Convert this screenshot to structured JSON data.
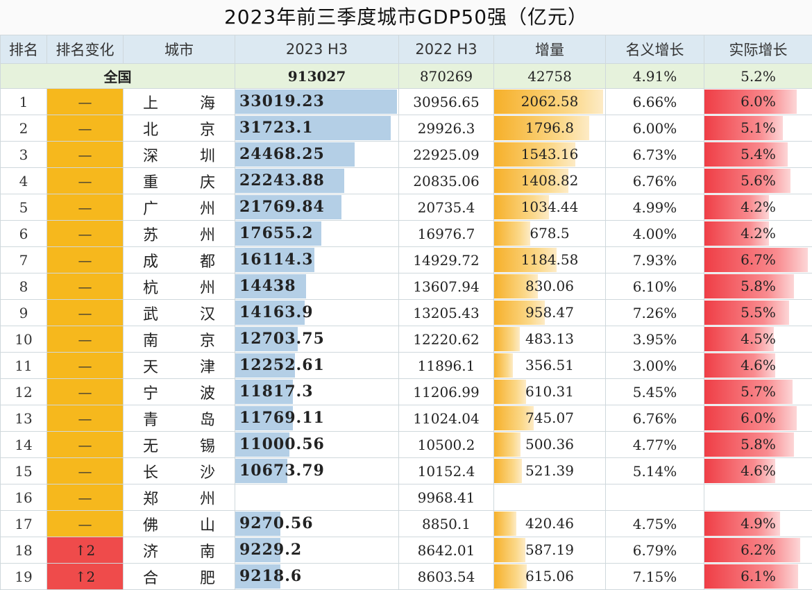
{
  "title": "2023年前三季度城市GDP50强（亿元）",
  "headers": [
    "排名",
    "排名变化",
    "城市",
    "2023 H3",
    "2022 H3",
    "增量",
    "名义增长",
    "实际增长"
  ],
  "total": {
    "label": "全国",
    "h23": "913027",
    "h22": "870269",
    "inc": "42758",
    "nominal": "4.91%",
    "real": "5.2%"
  },
  "scale": {
    "h23_max": 33019.23,
    "inc_max": 2062.58,
    "real_max": 6.7
  },
  "colors": {
    "unchanged": "#f6b81d",
    "rank_up": "#ef4b4b",
    "bar_2023": "#b4cfe6",
    "bar_inc": "#f6b02a",
    "bar_real": "#ef3e46",
    "total_row": "#e6f2dc",
    "header_row": "#dce9f2"
  },
  "rows": [
    {
      "rank": "1",
      "change": "—",
      "up": false,
      "city": "上海",
      "h23": "33019.23",
      "h22": "30956.65",
      "inc": "2062.58",
      "nominal": "6.66%",
      "real": "6.0%"
    },
    {
      "rank": "2",
      "change": "—",
      "up": false,
      "city": "北京",
      "h23": "31723.1",
      "h22": "29926.3",
      "inc": "1796.8",
      "nominal": "6.00%",
      "real": "5.1%"
    },
    {
      "rank": "3",
      "change": "—",
      "up": false,
      "city": "深圳",
      "h23": "24468.25",
      "h22": "22925.09",
      "inc": "1543.16",
      "nominal": "6.73%",
      "real": "5.4%"
    },
    {
      "rank": "4",
      "change": "—",
      "up": false,
      "city": "重庆",
      "h23": "22243.88",
      "h22": "20835.06",
      "inc": "1408.82",
      "nominal": "6.76%",
      "real": "5.6%"
    },
    {
      "rank": "5",
      "change": "—",
      "up": false,
      "city": "广州",
      "h23": "21769.84",
      "h22": "20735.4",
      "inc": "1034.44",
      "nominal": "4.99%",
      "real": "4.2%"
    },
    {
      "rank": "6",
      "change": "—",
      "up": false,
      "city": "苏州",
      "h23": "17655.2",
      "h22": "16976.7",
      "inc": "678.5",
      "nominal": "4.00%",
      "real": "4.2%"
    },
    {
      "rank": "7",
      "change": "—",
      "up": false,
      "city": "成都",
      "h23": "16114.3",
      "h22": "14929.72",
      "inc": "1184.58",
      "nominal": "7.93%",
      "real": "6.7%"
    },
    {
      "rank": "8",
      "change": "—",
      "up": false,
      "city": "杭州",
      "h23": "14438",
      "h22": "13607.94",
      "inc": "830.06",
      "nominal": "6.10%",
      "real": "5.8%"
    },
    {
      "rank": "9",
      "change": "—",
      "up": false,
      "city": "武汉",
      "h23": "14163.9",
      "h22": "13205.43",
      "inc": "958.47",
      "nominal": "7.26%",
      "real": "5.5%"
    },
    {
      "rank": "10",
      "change": "—",
      "up": false,
      "city": "南京",
      "h23": "12703.75",
      "h22": "12220.62",
      "inc": "483.13",
      "nominal": "3.95%",
      "real": "4.5%"
    },
    {
      "rank": "11",
      "change": "—",
      "up": false,
      "city": "天津",
      "h23": "12252.61",
      "h22": "11896.1",
      "inc": "356.51",
      "nominal": "3.00%",
      "real": "4.6%"
    },
    {
      "rank": "12",
      "change": "—",
      "up": false,
      "city": "宁波",
      "h23": "11817.3",
      "h22": "11206.99",
      "inc": "610.31",
      "nominal": "5.45%",
      "real": "5.7%"
    },
    {
      "rank": "13",
      "change": "—",
      "up": false,
      "city": "青岛",
      "h23": "11769.11",
      "h22": "11024.04",
      "inc": "745.07",
      "nominal": "6.76%",
      "real": "6.0%"
    },
    {
      "rank": "14",
      "change": "—",
      "up": false,
      "city": "无锡",
      "h23": "11000.56",
      "h22": "10500.2",
      "inc": "500.36",
      "nominal": "4.77%",
      "real": "5.8%"
    },
    {
      "rank": "15",
      "change": "—",
      "up": false,
      "city": "长沙",
      "h23": "10673.79",
      "h22": "10152.4",
      "inc": "521.39",
      "nominal": "5.14%",
      "real": "4.6%"
    },
    {
      "rank": "16",
      "change": "—",
      "up": false,
      "city": "郑州",
      "h23": "",
      "h22": "9968.41",
      "inc": "",
      "nominal": "",
      "real": ""
    },
    {
      "rank": "17",
      "change": "—",
      "up": false,
      "city": "佛山",
      "h23": "9270.56",
      "h22": "8850.1",
      "inc": "420.46",
      "nominal": "4.75%",
      "real": "4.9%"
    },
    {
      "rank": "18",
      "change": "↑2",
      "up": true,
      "city": "济南",
      "h23": "9229.2",
      "h22": "8642.01",
      "inc": "587.19",
      "nominal": "6.79%",
      "real": "6.2%"
    },
    {
      "rank": "19",
      "change": "↑2",
      "up": true,
      "city": "合肥",
      "h23": "9218.6",
      "h22": "8603.54",
      "inc": "615.06",
      "nominal": "7.15%",
      "real": "6.1%"
    }
  ]
}
